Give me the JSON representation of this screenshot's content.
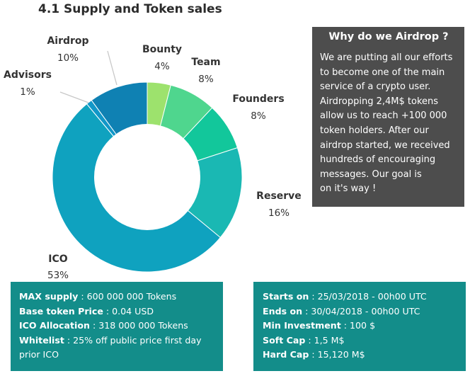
{
  "page_title": "4.1 Supply and Token sales",
  "chart_data": {
    "type": "donut",
    "slices": [
      {
        "label": "Bounty",
        "pct_label": "4%",
        "value": 4,
        "color": "#9de26d"
      },
      {
        "label": "Team",
        "pct_label": "8%",
        "value": 8,
        "color": "#4fd68e"
      },
      {
        "label": "Founders",
        "pct_label": "8%",
        "value": 8,
        "color": "#12c79b"
      },
      {
        "label": "Reserve",
        "pct_label": "16%",
        "value": 16,
        "color": "#1ab8b3"
      },
      {
        "label": "ICO",
        "pct_label": "53%",
        "value": 53,
        "color": "#0fa2bf"
      },
      {
        "label": "Advisors",
        "pct_label": "1%",
        "value": 1,
        "color": "#1197c8"
      },
      {
        "label": "Airdrop",
        "pct_label": "10%",
        "value": 10,
        "color": "#0f81b3"
      }
    ]
  },
  "why_box": {
    "title": "Why do we Airdrop ?",
    "lines": [
      "We are putting all our efforts",
      "to become one of the main",
      "service of a crypto user.",
      "Airdropping 2,4M$ tokens",
      "allow us to reach +100 000",
      "token holders. After our",
      "airdrop started, we received",
      "hundreds of encouraging",
      "messages. Our goal is",
      "on it's way !"
    ]
  },
  "supply_box": {
    "rows": [
      {
        "key": "MAX supply",
        "value": " : 600 000 000 Tokens"
      },
      {
        "key": "Base token Price",
        "value": " : 0.04 USD"
      },
      {
        "key": "ICO Allocation",
        "value": " : 318 000 000 Tokens"
      },
      {
        "key": "Whitelist",
        "value": " : 25% off public price first day"
      },
      {
        "key": "",
        "value": "prior ICO"
      }
    ]
  },
  "sale_box": {
    "rows": [
      {
        "key": "Starts on",
        "value": " : 25/03/2018 - 00h00 UTC"
      },
      {
        "key": "Ends on",
        "value": " : 30/04/2018 - 00h00 UTC"
      },
      {
        "key": "Min Investment",
        "value": "  : 100 $"
      },
      {
        "key": "Soft Cap",
        "value": " : 1,5 M$"
      },
      {
        "key": "Hard Cap",
        "value": " : 15,120 M$"
      }
    ]
  }
}
